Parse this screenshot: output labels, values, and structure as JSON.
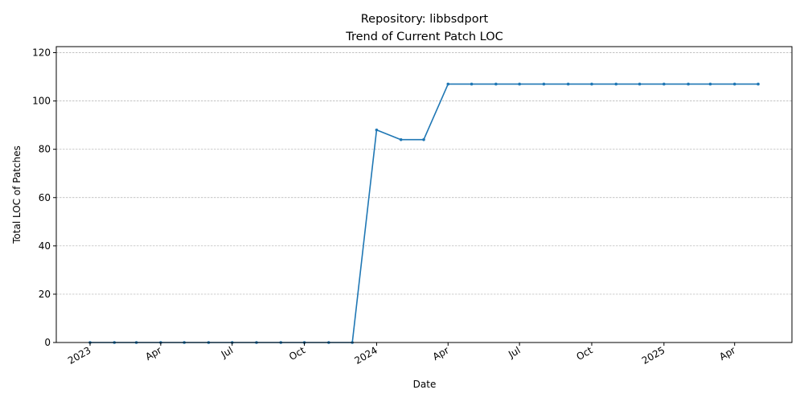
{
  "chart_data": {
    "type": "line",
    "title": "Repository: libbsdport",
    "subtitle": "Trend of Current Patch LOC",
    "xlabel": "Date",
    "ylabel": "Total LOC of Patches",
    "ylim": [
      0,
      122.5
    ],
    "y_ticks": [
      0,
      20,
      40,
      60,
      80,
      100,
      120
    ],
    "x_ticks": [
      {
        "date": "2023-01-01",
        "label": "2023"
      },
      {
        "date": "2023-04-01",
        "label": "Apr"
      },
      {
        "date": "2023-07-01",
        "label": "Jul"
      },
      {
        "date": "2023-10-01",
        "label": "Oct"
      },
      {
        "date": "2024-01-01",
        "label": "2024"
      },
      {
        "date": "2024-04-01",
        "label": "Apr"
      },
      {
        "date": "2024-07-01",
        "label": "Jul"
      },
      {
        "date": "2024-10-01",
        "label": "Oct"
      },
      {
        "date": "2025-01-01",
        "label": "2025"
      },
      {
        "date": "2025-04-01",
        "label": "Apr"
      }
    ],
    "grid": "horizontal",
    "color": "#1f77b4",
    "series": [
      {
        "x": [
          "2023-01-01",
          "2023-02-01",
          "2023-03-01",
          "2023-04-01",
          "2023-05-01",
          "2023-06-01",
          "2023-07-01",
          "2023-08-01",
          "2023-09-01",
          "2023-10-01",
          "2023-11-01",
          "2023-12-01",
          "2024-01-01",
          "2024-02-01",
          "2024-03-01",
          "2024-04-01",
          "2024-05-01",
          "2024-06-01",
          "2024-07-01",
          "2024-08-01",
          "2024-09-01",
          "2024-10-01",
          "2024-11-01",
          "2024-12-01",
          "2025-01-01",
          "2025-02-01",
          "2025-03-01",
          "2025-04-01",
          "2025-05-01"
        ],
        "values": [
          0,
          0,
          0,
          0,
          0,
          0,
          0,
          0,
          0,
          0,
          0,
          0,
          88,
          84,
          84,
          107,
          107,
          107,
          107,
          107,
          107,
          107,
          107,
          107,
          107,
          107,
          107,
          107,
          107
        ]
      }
    ]
  }
}
